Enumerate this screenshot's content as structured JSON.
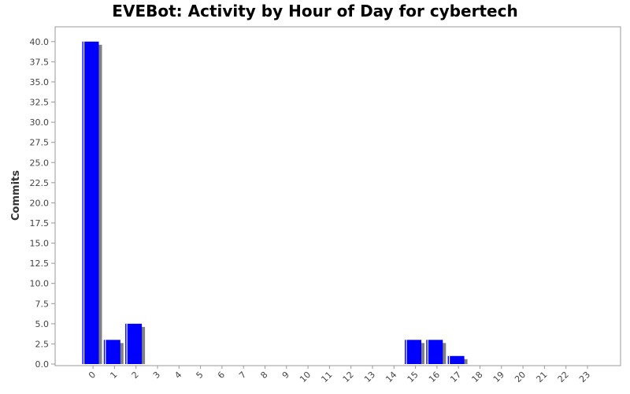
{
  "chart_data": {
    "type": "bar",
    "title": "EVEBot: Activity by Hour of Day for cybertech",
    "xlabel": "",
    "ylabel": "Commits",
    "categories": [
      "0",
      "1",
      "2",
      "3",
      "4",
      "5",
      "6",
      "7",
      "8",
      "9",
      "10",
      "11",
      "12",
      "13",
      "14",
      "15",
      "16",
      "17",
      "18",
      "19",
      "20",
      "21",
      "22",
      "23"
    ],
    "values": [
      40,
      3,
      5,
      0,
      0,
      0,
      0,
      0,
      0,
      0,
      0,
      0,
      0,
      0,
      0,
      3,
      3,
      1,
      0,
      0,
      0,
      0,
      0,
      0
    ],
    "yticks": [
      "0.0",
      "2.5",
      "5.0",
      "7.5",
      "10.0",
      "12.5",
      "15.0",
      "17.5",
      "20.0",
      "22.5",
      "25.0",
      "27.5",
      "30.0",
      "32.5",
      "35.0",
      "37.5",
      "40.0"
    ],
    "ylim": [
      0,
      42
    ],
    "grid": false,
    "colors": {
      "bar": "#0000ff",
      "shadow": "#808080",
      "highlight": "#ffffff",
      "plot_border": "#999999",
      "tick": "#999999"
    }
  }
}
